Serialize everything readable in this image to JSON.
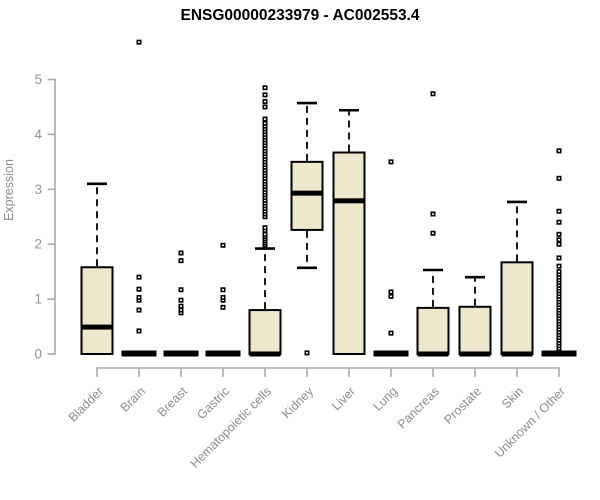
{
  "title": "ENSG00000233979 - AC002553.4",
  "ylabel": "Expression",
  "colors": {
    "background": "#FFFFFF",
    "box_fill": "#EDE8CC",
    "box_border": "#000000",
    "median_color": "#000000",
    "whisker_color": "#000000",
    "outlier_color": "#000000",
    "axis_line": "#A8A8A8",
    "y_tick_label": "#8C93A0",
    "category_label": "#8D8D8D",
    "title_color": "#000000"
  },
  "chart_data": {
    "type": "boxplot",
    "title": "ENSG00000233979 - AC002553.4",
    "xlabel": "",
    "ylabel": "Expression",
    "ylim": [
      0,
      5
    ],
    "yticks": [
      0,
      1,
      2,
      3,
      4,
      5
    ],
    "grid": false,
    "legend": false,
    "categories": [
      "Bladder",
      "Brain",
      "Breast",
      "Gastric",
      "Hematopoietic cells",
      "Kidney",
      "Liver",
      "Lung",
      "Pancreas",
      "Prostate",
      "Skin",
      "Unknown / Other"
    ],
    "boxes": [
      {
        "category": "Bladder",
        "q1": 0,
        "median": 0.49,
        "q3": 1.58,
        "whisker_low": 0,
        "whisker_high": 3.1,
        "outliers": []
      },
      {
        "category": "Brain",
        "q1": 0,
        "median": 0,
        "q3": 0,
        "whisker_low": 0,
        "whisker_high": 0,
        "outliers": [
          0.42,
          0.8,
          0.98,
          1.03,
          1.18,
          1.4,
          5.68
        ]
      },
      {
        "category": "Breast",
        "q1": 0,
        "median": 0,
        "q3": 0,
        "whisker_low": 0,
        "whisker_high": 0,
        "outliers": [
          0.75,
          0.8,
          0.87,
          0.98,
          1.17,
          1.7,
          1.84
        ]
      },
      {
        "category": "Gastric",
        "q1": 0,
        "median": 0,
        "q3": 0,
        "whisker_low": 0,
        "whisker_high": 0,
        "outliers": [
          0.85,
          0.98,
          1.03,
          1.17,
          1.98
        ]
      },
      {
        "category": "Hematopoietic cells",
        "q1": 0,
        "median": 0,
        "q3": 0.8,
        "whisker_low": 0,
        "whisker_high": 1.92,
        "outliers": [
          1.98,
          2.02,
          2.06,
          2.1,
          2.14,
          2.18,
          2.25,
          2.3,
          2.5,
          2.55,
          2.6,
          2.65,
          2.7,
          2.75,
          2.8,
          2.85,
          2.9,
          2.95,
          3.0,
          3.05,
          3.1,
          3.15,
          3.2,
          3.25,
          3.3,
          3.35,
          3.4,
          3.45,
          3.5,
          3.55,
          3.6,
          3.65,
          3.7,
          3.75,
          3.8,
          3.85,
          3.9,
          3.95,
          4.0,
          4.05,
          4.1,
          4.15,
          4.2,
          4.28,
          4.5,
          4.6,
          4.72,
          4.85
        ]
      },
      {
        "category": "Kidney",
        "q1": 2.26,
        "median": 2.93,
        "q3": 3.5,
        "whisker_low": 1.57,
        "whisker_high": 4.57,
        "outliers": [
          0.02
        ]
      },
      {
        "category": "Liver",
        "q1": 0,
        "median": 2.79,
        "q3": 3.67,
        "whisker_low": 0,
        "whisker_high": 4.44,
        "outliers": []
      },
      {
        "category": "Lung",
        "q1": 0,
        "median": 0,
        "q3": 0,
        "whisker_low": 0,
        "whisker_high": 0,
        "outliers": [
          0.38,
          1.05,
          1.13,
          3.5
        ]
      },
      {
        "category": "Pancreas",
        "q1": 0,
        "median": 0,
        "q3": 0.84,
        "whisker_low": 0,
        "whisker_high": 1.53,
        "outliers": [
          2.2,
          2.55,
          4.74
        ]
      },
      {
        "category": "Prostate",
        "q1": 0,
        "median": 0,
        "q3": 0.86,
        "whisker_low": 0,
        "whisker_high": 1.4,
        "outliers": []
      },
      {
        "category": "Skin",
        "q1": 0,
        "median": 0,
        "q3": 1.67,
        "whisker_low": 0,
        "whisker_high": 2.77,
        "outliers": []
      },
      {
        "category": "Unknown / Other",
        "q1": 0,
        "median": 0,
        "q3": 0,
        "whisker_low": 0,
        "whisker_high": 0,
        "outliers": [
          0.1,
          0.15,
          0.2,
          0.25,
          0.3,
          0.35,
          0.4,
          0.45,
          0.5,
          0.55,
          0.6,
          0.65,
          0.7,
          0.75,
          0.8,
          0.85,
          0.9,
          0.95,
          1.0,
          1.05,
          1.1,
          1.15,
          1.2,
          1.25,
          1.3,
          1.35,
          1.4,
          1.45,
          1.5,
          1.6,
          1.75,
          2.0,
          2.08,
          2.18,
          2.4,
          2.6,
          3.2,
          3.7
        ]
      }
    ]
  }
}
